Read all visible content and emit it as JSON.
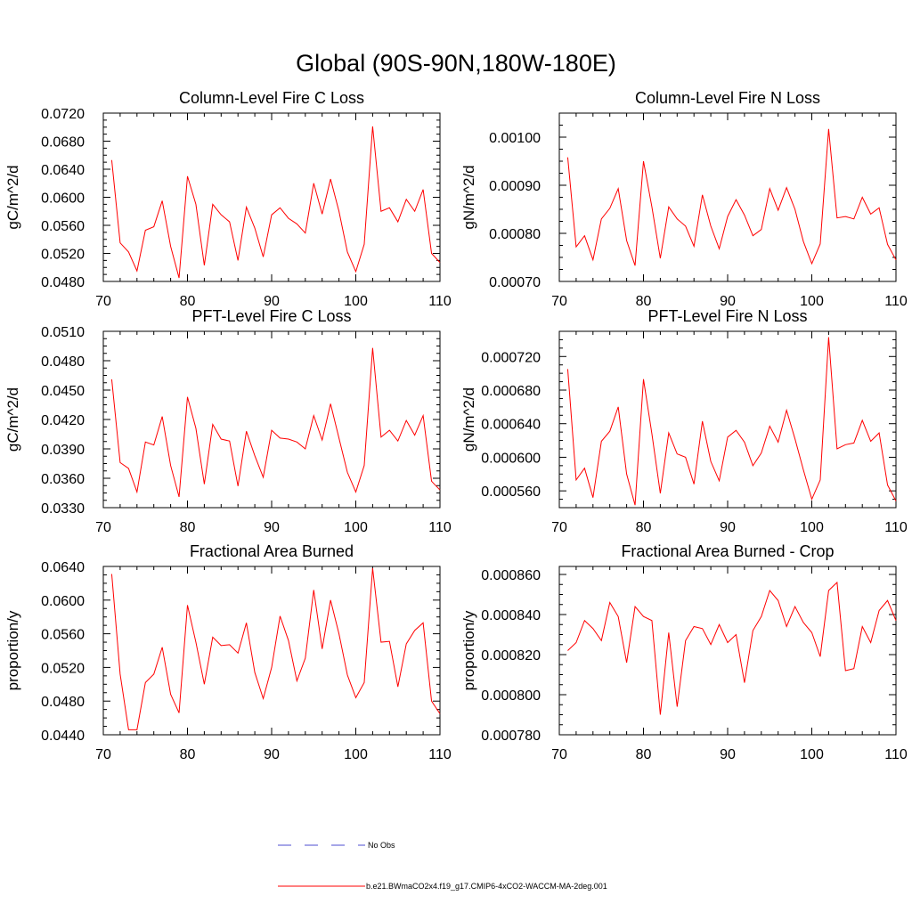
{
  "figure_title": "Global (90S-90N,180W-180E)",
  "colors": {
    "series": "#ff0000",
    "obs": "#4c4cd0",
    "axis": "#000000"
  },
  "legend": {
    "entries": [
      {
        "label": "No Obs",
        "style": "dashed",
        "color": "#4c4cd0"
      },
      {
        "label": "b.e21.BWmaCO2x4.f19_g17.CMIP6-4xCO2-WACCM-MA-2deg.001",
        "style": "solid",
        "color": "#ff0000"
      }
    ]
  },
  "chart_data": [
    {
      "type": "line",
      "title": "Column-Level Fire C Loss",
      "xlabel": "",
      "ylabel": "gC/m^2/d",
      "xlim": [
        70,
        110
      ],
      "ylim": [
        0.048,
        0.072
      ],
      "xticks": [
        "70",
        "80",
        "90",
        "100",
        "110"
      ],
      "yticks": [
        "0.0480",
        "0.0520",
        "0.0560",
        "0.0600",
        "0.0640",
        "0.0680",
        "0.0720"
      ],
      "series": [
        {
          "name": "b.e21.BWmaCO2x4.f19_g17.CMIP6-4xCO2-WACCM-MA-2deg.001",
          "x": [
            71,
            72,
            73,
            74,
            75,
            76,
            77,
            78,
            79,
            80,
            81,
            82,
            83,
            84,
            85,
            86,
            87,
            88,
            89,
            90,
            91,
            92,
            93,
            94,
            95,
            96,
            97,
            98,
            99,
            100,
            101,
            102,
            103,
            104,
            105,
            106,
            107,
            108,
            109,
            110
          ],
          "values": [
            0.0653,
            0.0535,
            0.0522,
            0.0495,
            0.0553,
            0.0558,
            0.0595,
            0.053,
            0.0485,
            0.063,
            0.059,
            0.0503,
            0.059,
            0.0575,
            0.0565,
            0.051,
            0.0586,
            0.0556,
            0.0515,
            0.0575,
            0.0585,
            0.057,
            0.0562,
            0.0549,
            0.062,
            0.0576,
            0.0626,
            0.058,
            0.0522,
            0.0494,
            0.0533,
            0.0701,
            0.058,
            0.0585,
            0.0565,
            0.0597,
            0.058,
            0.0611,
            0.052,
            0.0507
          ]
        }
      ]
    },
    {
      "type": "line",
      "title": "Column-Level Fire N Loss",
      "xlabel": "",
      "ylabel": "gN/m^2/d",
      "xlim": [
        70,
        110
      ],
      "ylim": [
        0.0007,
        0.00105
      ],
      "xticks": [
        "70",
        "80",
        "90",
        "100",
        "110"
      ],
      "yticks": [
        "0.00070",
        "0.00080",
        "0.00090",
        "0.00100"
      ],
      "series": [
        {
          "name": "b.e21.BWmaCO2x4.f19_g17.CMIP6-4xCO2-WACCM-MA-2deg.001",
          "x": [
            71,
            72,
            73,
            74,
            75,
            76,
            77,
            78,
            79,
            80,
            81,
            82,
            83,
            84,
            85,
            86,
            87,
            88,
            89,
            90,
            91,
            92,
            93,
            94,
            95,
            96,
            97,
            98,
            99,
            100,
            101,
            102,
            103,
            104,
            105,
            106,
            107,
            108,
            109,
            110
          ],
          "values": [
            0.000958,
            0.000772,
            0.000795,
            0.000745,
            0.00083,
            0.000852,
            0.000893,
            0.000785,
            0.000733,
            0.00095,
            0.000855,
            0.000748,
            0.000855,
            0.00083,
            0.000815,
            0.000773,
            0.00088,
            0.000815,
            0.000768,
            0.000835,
            0.00087,
            0.000838,
            0.000795,
            0.000808,
            0.000893,
            0.000848,
            0.000895,
            0.00085,
            0.000783,
            0.000737,
            0.000778,
            0.001017,
            0.000832,
            0.000835,
            0.00083,
            0.000875,
            0.00084,
            0.000853,
            0.000777,
            0.000745
          ]
        }
      ]
    },
    {
      "type": "line",
      "title": "PFT-Level Fire C Loss",
      "xlabel": "",
      "ylabel": "gC/m^2/d",
      "xlim": [
        70,
        110
      ],
      "ylim": [
        0.033,
        0.051
      ],
      "xticks": [
        "70",
        "80",
        "90",
        "100",
        "110"
      ],
      "yticks": [
        "0.0330",
        "0.0360",
        "0.0390",
        "0.0420",
        "0.0450",
        "0.0480",
        "0.0510"
      ],
      "series": [
        {
          "name": "b.e21.BWmaCO2x4.f19_g17.CMIP6-4xCO2-WACCM-MA-2deg.001",
          "x": [
            71,
            72,
            73,
            74,
            75,
            76,
            77,
            78,
            79,
            80,
            81,
            82,
            83,
            84,
            85,
            86,
            87,
            88,
            89,
            90,
            91,
            92,
            93,
            94,
            95,
            96,
            97,
            98,
            99,
            100,
            101,
            102,
            103,
            104,
            105,
            106,
            107,
            108,
            109,
            110
          ],
          "values": [
            0.0461,
            0.0376,
            0.037,
            0.0346,
            0.0397,
            0.0394,
            0.0423,
            0.0373,
            0.0341,
            0.0443,
            0.0411,
            0.0354,
            0.0415,
            0.04,
            0.0398,
            0.0352,
            0.0408,
            0.0383,
            0.0361,
            0.0409,
            0.0401,
            0.04,
            0.0397,
            0.039,
            0.0424,
            0.0399,
            0.0436,
            0.0401,
            0.0366,
            0.0346,
            0.0373,
            0.0493,
            0.0402,
            0.0409,
            0.0398,
            0.0419,
            0.0404,
            0.0424,
            0.0357,
            0.0348
          ]
        }
      ]
    },
    {
      "type": "line",
      "title": "PFT-Level Fire N Loss",
      "xlabel": "",
      "ylabel": "gN/m^2/d",
      "xlim": [
        70,
        110
      ],
      "ylim": [
        0.00054,
        0.00075
      ],
      "xticks": [
        "70",
        "80",
        "90",
        "100",
        "110"
      ],
      "yticks": [
        "0.000560",
        "0.000600",
        "0.000640",
        "0.000680",
        "0.000720"
      ],
      "series": [
        {
          "name": "b.e21.BWmaCO2x4.f19_g17.CMIP6-4xCO2-WACCM-MA-2deg.001",
          "x": [
            71,
            72,
            73,
            74,
            75,
            76,
            77,
            78,
            79,
            80,
            81,
            82,
            83,
            84,
            85,
            86,
            87,
            88,
            89,
            90,
            91,
            92,
            93,
            94,
            95,
            96,
            97,
            98,
            99,
            100,
            101,
            102,
            103,
            104,
            105,
            106,
            107,
            108,
            109,
            110
          ],
          "values": [
            0.000705,
            0.000573,
            0.000587,
            0.000552,
            0.000619,
            0.000631,
            0.00066,
            0.00058,
            0.000543,
            0.000693,
            0.000628,
            0.000557,
            0.000629,
            0.000604,
            0.0006,
            0.000568,
            0.000643,
            0.000595,
            0.000572,
            0.000624,
            0.000632,
            0.000618,
            0.00059,
            0.000605,
            0.000637,
            0.000618,
            0.000656,
            0.000622,
            0.000585,
            0.00055,
            0.000573,
            0.000743,
            0.00061,
            0.000615,
            0.000617,
            0.000644,
            0.000619,
            0.000629,
            0.000567,
            0.000548
          ]
        }
      ]
    },
    {
      "type": "line",
      "title": "Fractional Area Burned",
      "xlabel": "",
      "ylabel": "proportion/y",
      "xlim": [
        70,
        110
      ],
      "ylim": [
        0.044,
        0.064
      ],
      "xticks": [
        "70",
        "80",
        "90",
        "100",
        "110"
      ],
      "yticks": [
        "0.0440",
        "0.0480",
        "0.0520",
        "0.0560",
        "0.0600",
        "0.0640"
      ],
      "series": [
        {
          "name": "b.e21.BWmaCO2x4.f19_g17.CMIP6-4xCO2-WACCM-MA-2deg.001",
          "x": [
            71,
            72,
            73,
            74,
            75,
            76,
            77,
            78,
            79,
            80,
            81,
            82,
            83,
            84,
            85,
            86,
            87,
            88,
            89,
            90,
            91,
            92,
            93,
            94,
            95,
            96,
            97,
            98,
            99,
            100,
            101,
            102,
            103,
            104,
            105,
            106,
            107,
            108,
            109,
            110
          ],
          "values": [
            0.0631,
            0.0512,
            0.0446,
            0.0446,
            0.0502,
            0.0512,
            0.0544,
            0.0488,
            0.0466,
            0.0594,
            0.055,
            0.05,
            0.0556,
            0.0546,
            0.0547,
            0.0537,
            0.0573,
            0.0514,
            0.0483,
            0.052,
            0.0581,
            0.0552,
            0.0504,
            0.0531,
            0.0612,
            0.0542,
            0.06,
            0.056,
            0.0511,
            0.0484,
            0.0502,
            0.0638,
            0.055,
            0.0551,
            0.0497,
            0.0548,
            0.0564,
            0.0573,
            0.048,
            0.0465
          ]
        }
      ]
    },
    {
      "type": "line",
      "title": "Fractional Area Burned - Crop",
      "xlabel": "",
      "ylabel": "proportion/y",
      "xlim": [
        70,
        110
      ],
      "ylim": [
        0.00078,
        0.000864
      ],
      "xticks": [
        "70",
        "80",
        "90",
        "100",
        "110"
      ],
      "yticks": [
        "0.000780",
        "0.000800",
        "0.000820",
        "0.000840",
        "0.000860"
      ],
      "series": [
        {
          "name": "b.e21.BWmaCO2x4.f19_g17.CMIP6-4xCO2-WACCM-MA-2deg.001",
          "x": [
            71,
            72,
            73,
            74,
            75,
            76,
            77,
            78,
            79,
            80,
            81,
            82,
            83,
            84,
            85,
            86,
            87,
            88,
            89,
            90,
            91,
            92,
            93,
            94,
            95,
            96,
            97,
            98,
            99,
            100,
            101,
            102,
            103,
            104,
            105,
            106,
            107,
            108,
            109,
            110
          ],
          "values": [
            0.000822,
            0.000826,
            0.000837,
            0.000833,
            0.000827,
            0.000846,
            0.000839,
            0.000816,
            0.000844,
            0.000839,
            0.000837,
            0.00079,
            0.000831,
            0.000794,
            0.000827,
            0.000834,
            0.000833,
            0.000825,
            0.000835,
            0.000826,
            0.00083,
            0.000806,
            0.000832,
            0.000839,
            0.000852,
            0.000847,
            0.000834,
            0.000844,
            0.000836,
            0.000831,
            0.000819,
            0.000852,
            0.000856,
            0.000812,
            0.000813,
            0.000834,
            0.000826,
            0.000842,
            0.000847,
            0.000837
          ]
        }
      ]
    }
  ]
}
